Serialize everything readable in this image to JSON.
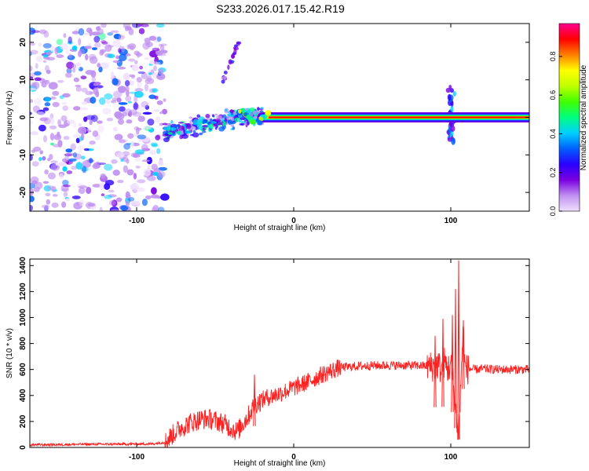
{
  "title": "S233.2026.017.15.42.R19",
  "chart_data": [
    {
      "type": "heatmap",
      "name": "spectrogram",
      "xlabel": "Height of straight line (km)",
      "ylabel": "Frequency (Hz)",
      "xlim": [
        -168,
        150
      ],
      "ylim": [
        -25,
        25
      ],
      "xticks": [
        -100,
        0,
        100
      ],
      "yticks": [
        -20,
        -10,
        0,
        10,
        20
      ],
      "colorbar": {
        "label": "Normalized spectral amplitude",
        "range": [
          0.0,
          0.97
        ],
        "ticks": [
          0.0,
          0.2,
          0.4,
          0.6,
          0.8
        ],
        "tick_labels": [
          "0.0",
          "0.2",
          "0.4",
          "0.6",
          "0.8"
        ],
        "colormap": [
          "#f0e0ff",
          "#c090f0",
          "#7a00e0",
          "#2a00ff",
          "#0060ff",
          "#00d0ff",
          "#00ff80",
          "#40ff00",
          "#c0ff00",
          "#ffff00",
          "#ff8000",
          "#ff0000",
          "#ff0090"
        ]
      },
      "features": [
        {
          "name": "carrier",
          "x_range": [
            -20,
            150
          ],
          "freq": 0.0,
          "amplitude": 0.95
        },
        {
          "name": "noise",
          "x_range": [
            -168,
            -82
          ],
          "freq_range": [
            -25,
            25
          ],
          "amplitude": 0.35
        },
        {
          "name": "emergence",
          "x_range": [
            -82,
            -20
          ],
          "freq_range": [
            -6,
            6
          ],
          "amplitude": 0.45
        },
        {
          "name": "disturbance",
          "x": 100,
          "freq_range": [
            -7,
            9
          ],
          "amplitude": 0.35
        },
        {
          "name": "arc-feature",
          "x_range": [
            -45,
            -35
          ],
          "freq_range": [
            10,
            20
          ],
          "amplitude": 0.3
        }
      ]
    },
    {
      "type": "line",
      "name": "snr",
      "xlabel": "Height of straight line (km)",
      "ylabel": "SNR (10 * v/v)",
      "xlim": [
        -168,
        150
      ],
      "ylim": [
        0,
        1450
      ],
      "xticks": [
        -100,
        0,
        100
      ],
      "yticks": [
        0,
        200,
        400,
        600,
        800,
        1000,
        1200,
        1400
      ],
      "color": "#ff2020",
      "series": [
        {
          "name": "SNR",
          "x": [
            -168,
            -150,
            -130,
            -110,
            -90,
            -82,
            -78,
            -72,
            -66,
            -60,
            -54,
            -48,
            -44,
            -40,
            -36,
            -32,
            -28,
            -25,
            -22,
            -18,
            -14,
            -10,
            -6,
            -2,
            2,
            6,
            10,
            14,
            18,
            22,
            26,
            30,
            40,
            50,
            60,
            70,
            80,
            86,
            90,
            92,
            94,
            96,
            98,
            100,
            102,
            103,
            104,
            105,
            106,
            107,
            108,
            109,
            110,
            112,
            115,
            120,
            130,
            140,
            150
          ],
          "y": [
            20,
            22,
            25,
            25,
            28,
            40,
            90,
            150,
            190,
            215,
            220,
            200,
            180,
            150,
            120,
            190,
            260,
            330,
            350,
            380,
            395,
            410,
            430,
            450,
            470,
            490,
            510,
            535,
            560,
            580,
            600,
            615,
            625,
            630,
            632,
            632,
            630,
            625,
            620,
            640,
            590,
            660,
            600,
            640,
            450,
            300,
            200,
            120,
            350,
            700,
            900,
            620,
            600,
            605,
            600,
            605,
            600,
            600,
            600
          ]
        }
      ],
      "spikes": [
        {
          "x": -25,
          "value": 560
        },
        {
          "x": 90,
          "value": 860
        },
        {
          "x": 95,
          "value": 990
        },
        {
          "x": 101,
          "value": 1020
        },
        {
          "x": 103,
          "value": 1220
        },
        {
          "x": 105,
          "value": 1440
        },
        {
          "x": 108,
          "value": 980
        }
      ]
    }
  ]
}
